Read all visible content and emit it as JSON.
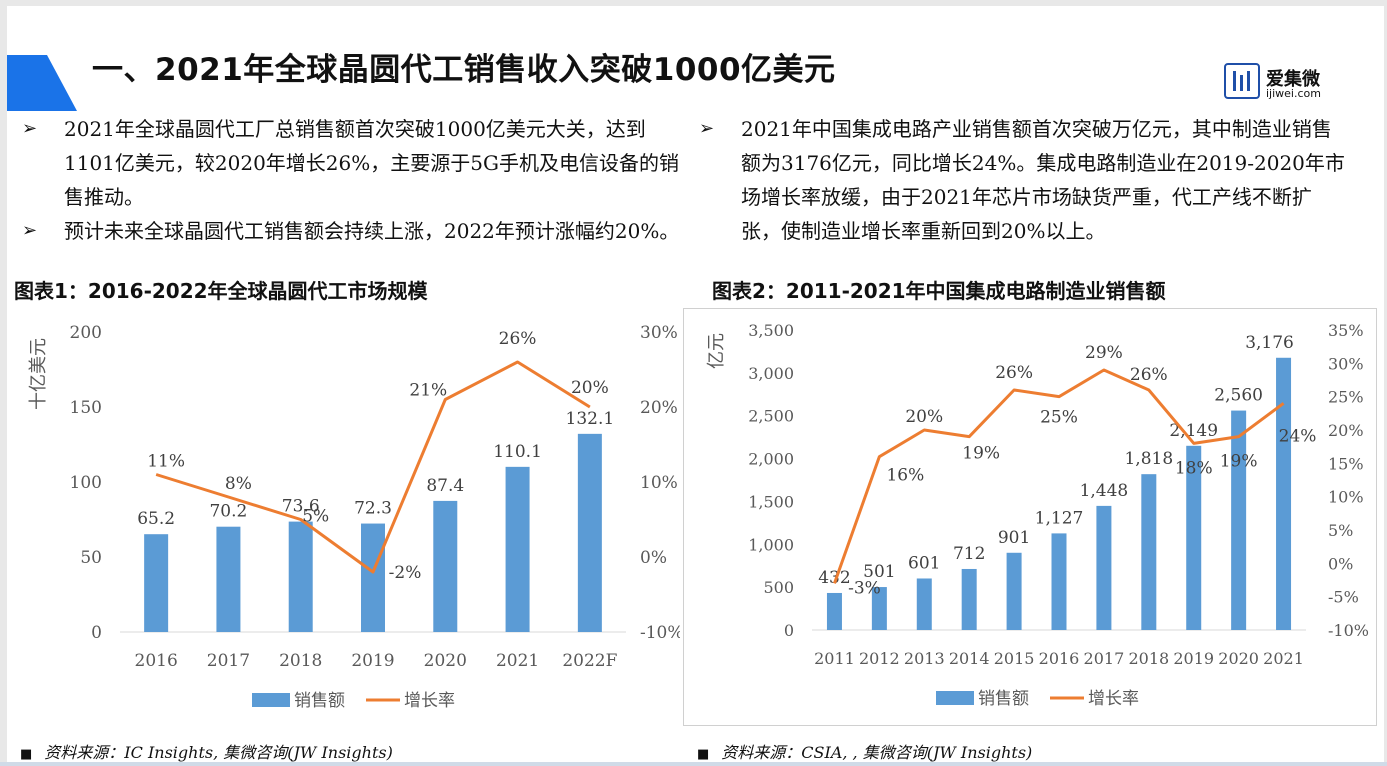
{
  "title": "一、2021年全球晶圆代工销售收入突破1000亿美元",
  "logo": {
    "cn": "爱集微",
    "en": "ijiwei.com"
  },
  "colors": {
    "accent_blue": "#1a73e8",
    "bar": "#5b9bd5",
    "line": "#ed7d31"
  },
  "left_bullets": [
    "2021年全球晶圆代工厂总销售额首次突破1000亿美元大关，达到1101亿美元，较2020年增长26%，主要源于5G手机及电信设备的销售推动。",
    "预计未来全球晶圆代工销售额会持续上涨，2022年预计涨幅约20%。"
  ],
  "right_bullets": [
    "2021年中国集成电路产业销售额首次突破万亿元，其中制造业销售额为3176亿元，同比增长24%。集成电路制造业在2019-2020年市场增长率放缓，由于2021年芯片市场缺货严重，代工产线不断扩张，使制造业增长率重新回到20%以上。"
  ],
  "fig1_caption": "图表1：2016-2022年全球晶圆代工市场规模",
  "fig2_caption": "图表2：2011-2021年中国集成电路制造业销售额",
  "source1": "资料来源：IC Insights, 集微咨询(JW Insights)",
  "source2": "资料来源：CSIA, , 集微咨询(JW Insights)",
  "chart_data": [
    {
      "type": "bar",
      "ylabel": "十亿美元",
      "categories": [
        "2016",
        "2017",
        "2018",
        "2019",
        "2020",
        "2021",
        "2022F"
      ],
      "ylim": [
        0,
        200
      ],
      "yticks": [
        "0",
        "50",
        "100",
        "150",
        "200"
      ],
      "y2lim": [
        -10,
        30
      ],
      "y2ticks": [
        "-10%",
        "0%",
        "10%",
        "20%",
        "30%"
      ],
      "series": [
        {
          "name": "销售额",
          "type": "bar",
          "values": [
            65.2,
            70.2,
            73.6,
            72.3,
            87.4,
            110.1,
            132.1
          ],
          "labels": [
            "65.2",
            "70.2",
            "73.6",
            "72.3",
            "87.4",
            "110.1",
            "132.1"
          ]
        },
        {
          "name": "增长率",
          "type": "line",
          "axis": "right",
          "values": [
            11,
            8,
            5,
            -2,
            21,
            26,
            20
          ],
          "labels": [
            "11%",
            "8%",
            "5%",
            "-2%",
            "21%",
            "26%",
            "20%"
          ]
        }
      ],
      "legend": "bottom"
    },
    {
      "type": "bar",
      "ylabel": "亿元",
      "categories": [
        "2011",
        "2012",
        "2013",
        "2014",
        "2015",
        "2016",
        "2017",
        "2018",
        "2019",
        "2020",
        "2021"
      ],
      "ylim": [
        0,
        3500
      ],
      "yticks": [
        "0",
        "500",
        "1,000",
        "1,500",
        "2,000",
        "2,500",
        "3,000",
        "3,500"
      ],
      "y2lim": [
        -10,
        35
      ],
      "y2ticks": [
        "-10%",
        "-5%",
        "0%",
        "5%",
        "10%",
        "15%",
        "20%",
        "25%",
        "30%",
        "35%"
      ],
      "series": [
        {
          "name": "销售额",
          "type": "bar",
          "values": [
            432,
            501,
            601,
            712,
            901,
            1127,
            1448,
            1818,
            2149,
            2560,
            3176
          ],
          "labels": [
            "432",
            "501",
            "601",
            "712",
            "901",
            "1,127",
            "1,448",
            "1,818",
            "2,149",
            "2,560",
            "3,176"
          ]
        },
        {
          "name": "增长率",
          "type": "line",
          "axis": "right",
          "values": [
            -3,
            16,
            20,
            19,
            26,
            25,
            29,
            26,
            18,
            19,
            24
          ],
          "labels": [
            "-3%",
            "16%",
            "20%",
            "19%",
            "26%",
            "25%",
            "29%",
            "26%",
            "18%",
            "19%",
            "24%"
          ]
        }
      ],
      "legend": "bottom"
    }
  ]
}
